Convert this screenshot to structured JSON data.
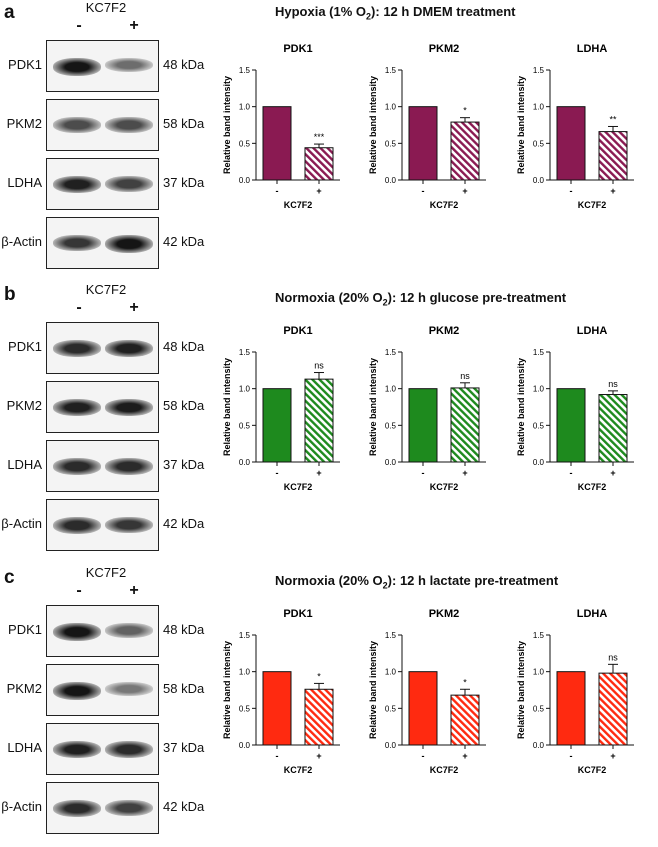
{
  "panels": [
    {
      "label": "a",
      "condition_pre": "Hypoxia (1% O",
      "condition_sub": "2",
      "condition_post": "): 12 h DMEM treatment",
      "blot": {
        "treatment_label": "KC7F2",
        "lane_signs": [
          "-",
          "+"
        ],
        "rows": [
          {
            "protein": "PDK1",
            "mw": "48 kDa"
          },
          {
            "protein": "PKM2",
            "mw": "58 kDa"
          },
          {
            "protein": "LDHA",
            "mw": "37 kDa"
          },
          {
            "protein": "β-Actin",
            "mw": "42 kDa"
          }
        ]
      }
    },
    {
      "label": "b",
      "condition_pre": "Normoxia (20% O",
      "condition_sub": "2",
      "condition_post": "): 12 h glucose pre-treatment",
      "blot": {
        "treatment_label": "KC7F2",
        "lane_signs": [
          "-",
          "+"
        ],
        "rows": [
          {
            "protein": "PDK1",
            "mw": "48 kDa"
          },
          {
            "protein": "PKM2",
            "mw": "58 kDa"
          },
          {
            "protein": "LDHA",
            "mw": "37 kDa"
          },
          {
            "protein": "β-Actin",
            "mw": "42 kDa"
          }
        ]
      }
    },
    {
      "label": "c",
      "condition_pre": "Normoxia (20% O",
      "condition_sub": "2",
      "condition_post": "): 12 h lactate pre-treatment",
      "blot": {
        "treatment_label": "KC7F2",
        "lane_signs": [
          "-",
          "+"
        ],
        "rows": [
          {
            "protein": "PDK1",
            "mw": "48 kDa"
          },
          {
            "protein": "PKM2",
            "mw": "58 kDa"
          },
          {
            "protein": "LDHA",
            "mw": "37 kDa"
          },
          {
            "protein": "β-Actin",
            "mw": "42 kDa"
          }
        ]
      }
    }
  ],
  "chart_data": [
    {
      "panel": "a",
      "type": "bar",
      "title": "PDK1",
      "ylabel": "Relative band intensity",
      "xlabel": "KC7F2",
      "categories": [
        "-",
        "+"
      ],
      "values": [
        1.0,
        0.44
      ],
      "errors": [
        0,
        0.05
      ],
      "significance": "***",
      "ylim": [
        0,
        1.5
      ],
      "yticks": [
        "0.0",
        "0.5",
        "1.0",
        "1.5"
      ],
      "color": "#8a1a52"
    },
    {
      "panel": "a",
      "type": "bar",
      "title": "PKM2",
      "ylabel": "Relative band intensity",
      "xlabel": "KC7F2",
      "categories": [
        "-",
        "+"
      ],
      "values": [
        1.0,
        0.79
      ],
      "errors": [
        0,
        0.06
      ],
      "significance": "*",
      "ylim": [
        0,
        1.5
      ],
      "yticks": [
        "0.0",
        "0.5",
        "1.0",
        "1.5"
      ],
      "color": "#8a1a52"
    },
    {
      "panel": "a",
      "type": "bar",
      "title": "LDHA",
      "ylabel": "Relative band intensity",
      "xlabel": "KC7F2",
      "categories": [
        "-",
        "+"
      ],
      "values": [
        1.0,
        0.66
      ],
      "errors": [
        0,
        0.07
      ],
      "significance": "**",
      "ylim": [
        0,
        1.5
      ],
      "yticks": [
        "0.0",
        "0.5",
        "1.0",
        "1.5"
      ],
      "color": "#8a1a52"
    },
    {
      "panel": "b",
      "type": "bar",
      "title": "PDK1",
      "ylabel": "Relative band intensity",
      "xlabel": "KC7F2",
      "categories": [
        "-",
        "+"
      ],
      "values": [
        1.0,
        1.13
      ],
      "errors": [
        0,
        0.09
      ],
      "significance": "ns",
      "ylim": [
        0,
        1.5
      ],
      "yticks": [
        "0.0",
        "0.5",
        "1.0",
        "1.5"
      ],
      "color": "#1e8a1e"
    },
    {
      "panel": "b",
      "type": "bar",
      "title": "PKM2",
      "ylabel": "Relative band intensity",
      "xlabel": "KC7F2",
      "categories": [
        "-",
        "+"
      ],
      "values": [
        1.0,
        1.01
      ],
      "errors": [
        0,
        0.07
      ],
      "significance": "ns",
      "ylim": [
        0,
        1.5
      ],
      "yticks": [
        "0.0",
        "0.5",
        "1.0",
        "1.5"
      ],
      "color": "#1e8a1e"
    },
    {
      "panel": "b",
      "type": "bar",
      "title": "LDHA",
      "ylabel": "Relative band intensity",
      "xlabel": "KC7F2",
      "categories": [
        "-",
        "+"
      ],
      "values": [
        1.0,
        0.92
      ],
      "errors": [
        0,
        0.05
      ],
      "significance": "ns",
      "ylim": [
        0,
        1.5
      ],
      "yticks": [
        "0.0",
        "0.5",
        "1.0",
        "1.5"
      ],
      "color": "#1e8a1e"
    },
    {
      "panel": "c",
      "type": "bar",
      "title": "PDK1",
      "ylabel": "Relative band intensity",
      "xlabel": "KC7F2",
      "categories": [
        "-",
        "+"
      ],
      "values": [
        1.0,
        0.76
      ],
      "errors": [
        0,
        0.08
      ],
      "significance": "*",
      "ylim": [
        0,
        1.5
      ],
      "yticks": [
        "0.0",
        "0.5",
        "1.0",
        "1.5"
      ],
      "color": "#ff2a10"
    },
    {
      "panel": "c",
      "type": "bar",
      "title": "PKM2",
      "ylabel": "Relative band intensity",
      "xlabel": "KC7F2",
      "categories": [
        "-",
        "+"
      ],
      "values": [
        1.0,
        0.68
      ],
      "errors": [
        0,
        0.08
      ],
      "significance": "*",
      "ylim": [
        0,
        1.5
      ],
      "yticks": [
        "0.0",
        "0.5",
        "1.0",
        "1.5"
      ],
      "color": "#ff2a10"
    },
    {
      "panel": "c",
      "type": "bar",
      "title": "LDHA",
      "ylabel": "Relative band intensity",
      "xlabel": "KC7F2",
      "categories": [
        "-",
        "+"
      ],
      "values": [
        1.0,
        0.98
      ],
      "errors": [
        0,
        0.12
      ],
      "significance": "ns",
      "ylim": [
        0,
        1.5
      ],
      "yticks": [
        "0.0",
        "0.5",
        "1.0",
        "1.5"
      ],
      "color": "#ff2a10"
    }
  ]
}
